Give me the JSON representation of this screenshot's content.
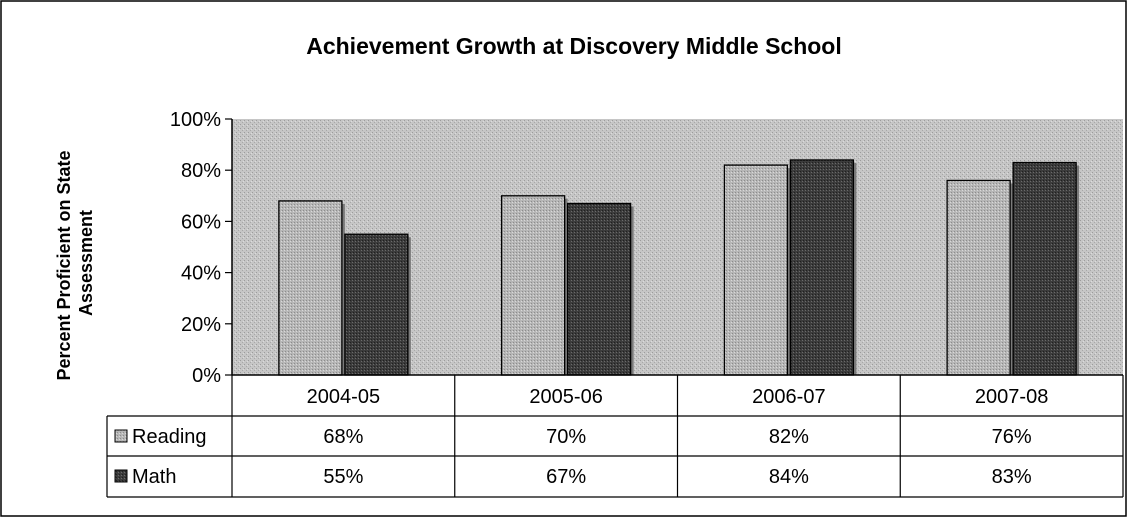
{
  "chart_data": {
    "type": "bar",
    "title": "Achievement Growth at Discovery Middle School",
    "ylabel": "Percent Proficient on State Assessment",
    "ylabel_lines": [
      "Percent Proficient on State",
      "Assessment"
    ],
    "xlabel": "",
    "categories": [
      "2004-05",
      "2005-06",
      "2006-07",
      "2007-08"
    ],
    "ylim": [
      0,
      100
    ],
    "yticks": [
      0,
      20,
      40,
      60,
      80,
      100
    ],
    "ytick_labels": [
      "0%",
      "20%",
      "40%",
      "60%",
      "80%",
      "100%"
    ],
    "grid": false,
    "legend": "data-table",
    "series": [
      {
        "name": "Reading",
        "values": [
          68,
          70,
          82,
          76
        ],
        "labels": [
          "68%",
          "70%",
          "82%",
          "76%"
        ],
        "color": "#b4b4b4"
      },
      {
        "name": "Math",
        "values": [
          55,
          67,
          84,
          83
        ],
        "labels": [
          "55%",
          "67%",
          "84%",
          "83%"
        ],
        "color": "#3a3a3a"
      }
    ],
    "plot_background": "#c4c4c4"
  }
}
